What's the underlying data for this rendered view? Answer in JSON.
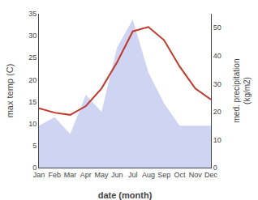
{
  "chart_data": {
    "type": "line",
    "xlabel": "date (month)",
    "ylabel": "max temp (C)",
    "y2label": "med. precipitation\n(kg/m2)",
    "categories": [
      "Jan",
      "Feb",
      "Mar",
      "Apr",
      "May",
      "Jun",
      "Jul",
      "Aug",
      "Sep",
      "Oct",
      "Nov",
      "Dec"
    ],
    "series": [
      {
        "type": "area",
        "axis": "y2",
        "color": "#c5cdf0",
        "values": [
          15,
          18,
          12,
          26,
          20,
          43,
          53,
          34,
          23,
          15,
          15,
          15
        ]
      },
      {
        "type": "line",
        "color": "#c0392b",
        "values": [
          13.5,
          12.5,
          12.0,
          14.0,
          18.0,
          24.0,
          31.0,
          32.0,
          29.0,
          23.0,
          18.0,
          15.5
        ]
      }
    ],
    "ylim": [
      0,
      35
    ],
    "yticks": [
      0,
      5,
      10,
      15,
      20,
      25,
      30,
      35
    ],
    "y2lim": [
      0,
      55
    ],
    "y2ticks": [
      0,
      10,
      20,
      30,
      40,
      50
    ],
    "grid": false
  }
}
